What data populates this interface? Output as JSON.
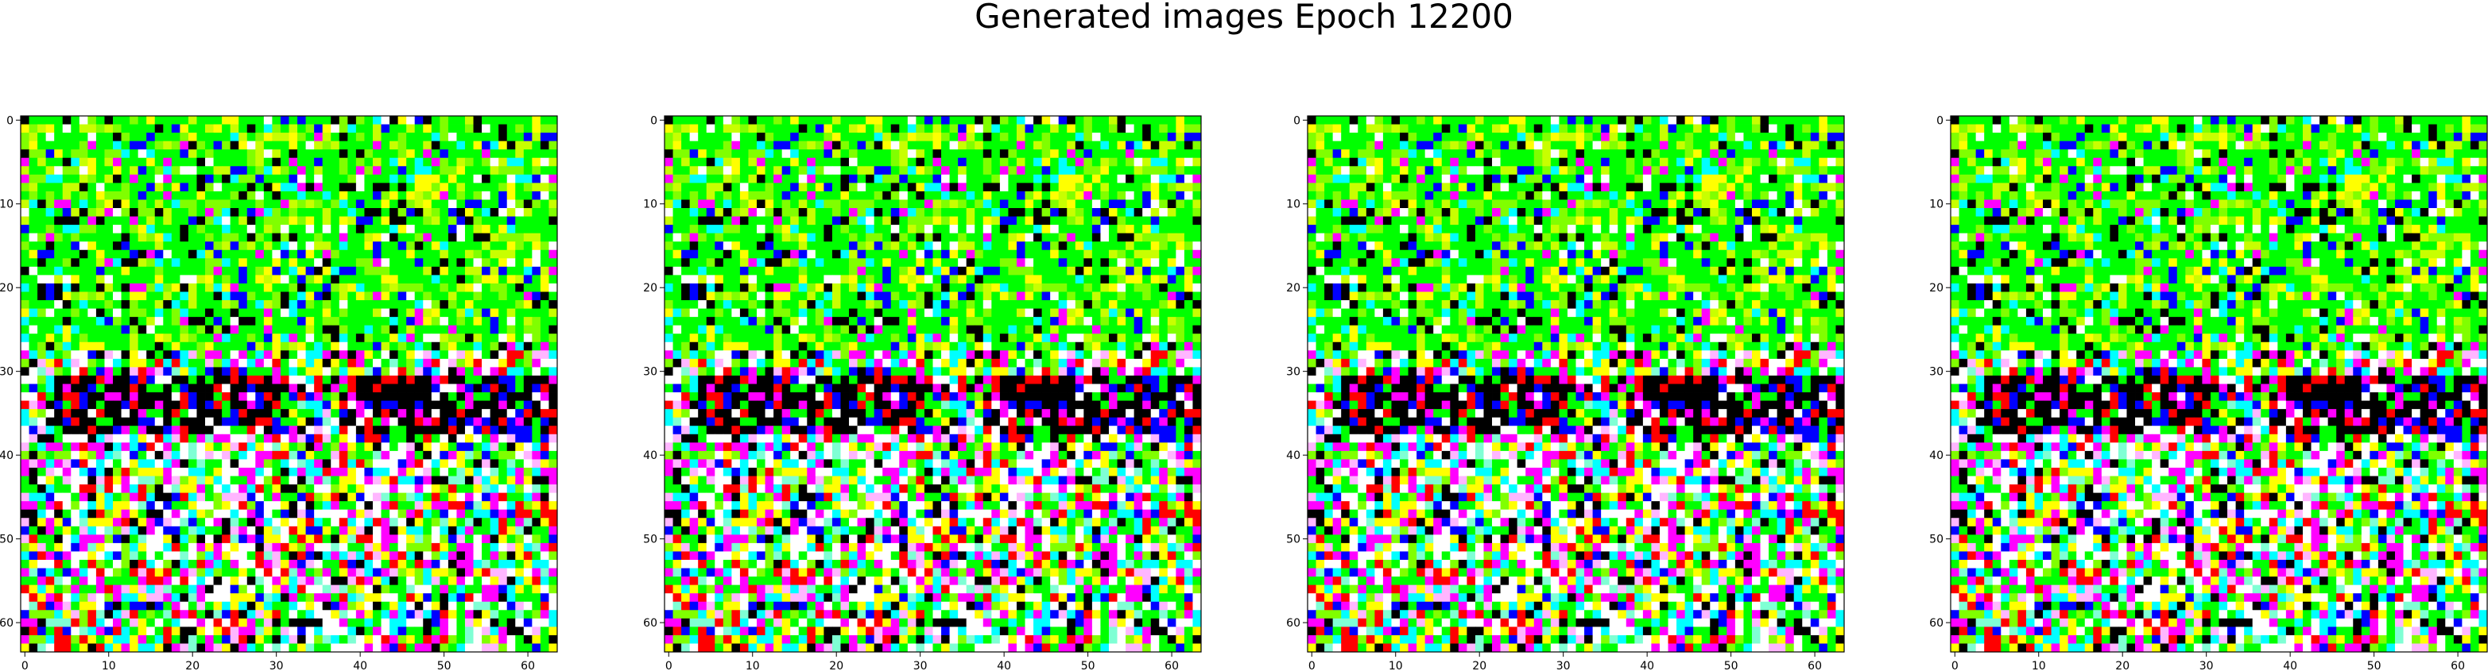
{
  "figure": {
    "title": "Generated images Epoch 12200"
  },
  "panels": [
    {
      "name": "generated-image-1"
    },
    {
      "name": "generated-image-2"
    },
    {
      "name": "generated-image-3"
    },
    {
      "name": "generated-image-4"
    }
  ],
  "axes": {
    "x_ticks": [
      "0",
      "10",
      "20",
      "30",
      "40",
      "50",
      "60"
    ],
    "y_ticks": [
      "0",
      "10",
      "20",
      "30",
      "40",
      "50",
      "60"
    ],
    "x_range": [
      -0.5,
      63.5
    ],
    "y_range": [
      -0.5,
      63.5
    ]
  },
  "image_grid": {
    "resolution": 64,
    "palette": [
      "#00ff00",
      "#ffff00",
      "#ff00ff",
      "#00ffff",
      "#ffffff",
      "#000000",
      "#ff0000",
      "#0000ff",
      "#80ff00",
      "#ffb6ff",
      "#7fffd4",
      "#c8ff00"
    ]
  }
}
